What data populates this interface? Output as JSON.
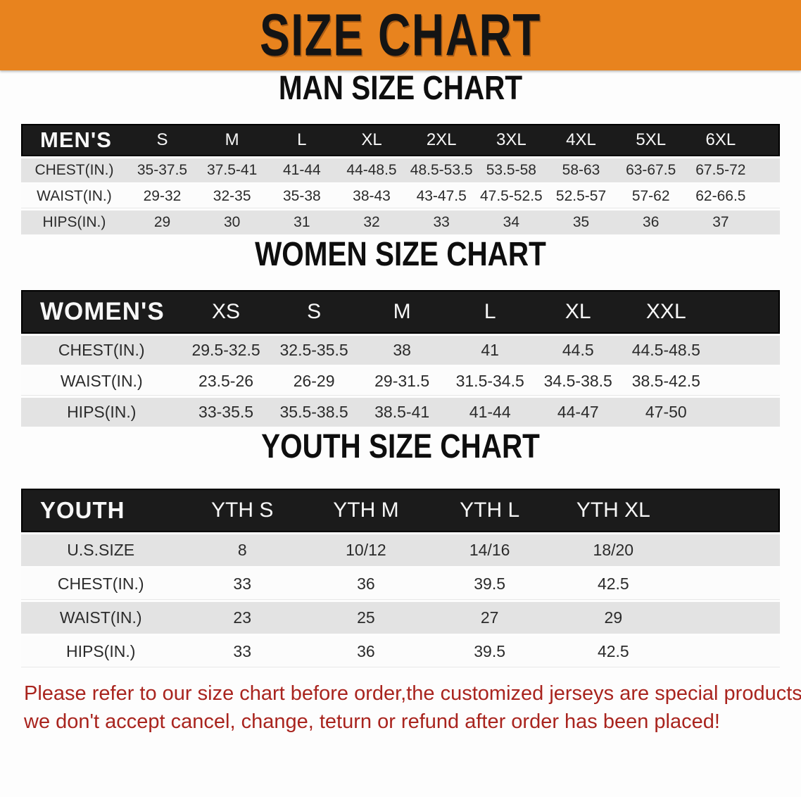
{
  "banner": {
    "title": "SIZE CHART",
    "bg_color": "#E8831E",
    "text_color": "#141414"
  },
  "sections": [
    {
      "heading": "MAN SIZE CHART",
      "table": {
        "name": "mens-size-table",
        "label": "MEN'S",
        "columns": [
          "S",
          "M",
          "L",
          "XL",
          "2XL",
          "3XL",
          "4XL",
          "5XL",
          "6XL"
        ],
        "rows": [
          {
            "label": "CHEST(IN.)",
            "values": [
              "35-37.5",
              "37.5-41",
              "41-44",
              "44-48.5",
              "48.5-53.5",
              "53.5-58",
              "58-63",
              "63-67.5",
              "67.5-72"
            ]
          },
          {
            "label": "WAIST(IN.)",
            "values": [
              "29-32",
              "32-35",
              "35-38",
              "38-43",
              "43-47.5",
              "47.5-52.5",
              "52.5-57",
              "57-62",
              "62-66.5"
            ]
          },
          {
            "label": "HIPS(IN.)",
            "values": [
              "29",
              "30",
              "31",
              "32",
              "33",
              "34",
              "35",
              "36",
              "37"
            ]
          }
        ]
      }
    },
    {
      "heading": "WOMEN SIZE CHART",
      "table": {
        "name": "womens-size-table",
        "label": "WOMEN'S",
        "columns": [
          "XS",
          "S",
          "M",
          "L",
          "XL",
          "XXL"
        ],
        "rows": [
          {
            "label": "CHEST(IN.)",
            "values": [
              "29.5-32.5",
              "32.5-35.5",
              "38",
              "41",
              "44.5",
              "44.5-48.5"
            ]
          },
          {
            "label": "WAIST(IN.)",
            "values": [
              "23.5-26",
              "26-29",
              "29-31.5",
              "31.5-34.5",
              "34.5-38.5",
              "38.5-42.5"
            ]
          },
          {
            "label": "HIPS(IN.)",
            "values": [
              "33-35.5",
              "35.5-38.5",
              "38.5-41",
              "41-44",
              "44-47",
              "47-50"
            ]
          }
        ]
      }
    },
    {
      "heading": "YOUTH SIZE CHART",
      "table": {
        "name": "youth-size-table",
        "label": "YOUTH",
        "columns": [
          "YTH S",
          "YTH M",
          "YTH L",
          "YTH XL"
        ],
        "rows": [
          {
            "label": "U.S.SIZE",
            "values": [
              "8",
              "10/12",
              "14/16",
              "18/20"
            ]
          },
          {
            "label": "CHEST(IN.)",
            "values": [
              "33",
              "36",
              "39.5",
              "42.5"
            ]
          },
          {
            "label": "WAIST(IN.)",
            "values": [
              "23",
              "25",
              "27",
              "29"
            ]
          },
          {
            "label": "HIPS(IN.)",
            "values": [
              "33",
              "36",
              "39.5",
              "42.5"
            ]
          }
        ]
      }
    }
  ],
  "disclaimer": {
    "line1": "Please refer to our size chart before order,the customized jerseys are special products,",
    "line2": "we don't accept cancel, change, teturn or refund after order has been placed!",
    "color": "#A9241E"
  },
  "colors": {
    "banner_orange": "#E8831E",
    "header_black": "#1b1b1b",
    "row_gray": "#e3e3e3",
    "row_white": "#fcfcfc",
    "disclaimer_red": "#A9241E"
  }
}
